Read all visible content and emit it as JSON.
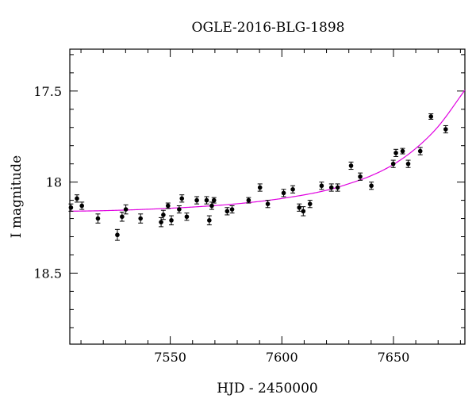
{
  "chart_data": {
    "type": "scatter",
    "title": "OGLE-2016-BLG-1898",
    "xlabel": "HJD - 2450000",
    "ylabel": "I magnitude",
    "xlim": [
      7505,
      7682
    ],
    "ylim": [
      18.89,
      17.27
    ],
    "y_axis_inverted": true,
    "grid": false,
    "x_ticks": [
      7550,
      7600,
      7650
    ],
    "x_tick_labels": [
      "7550",
      "7600",
      "7650"
    ],
    "y_ticks": [
      17.5,
      18,
      18.5
    ],
    "y_tick_labels": [
      "17.5",
      "18",
      "18.5"
    ],
    "colors": {
      "model_curve": "#e000e0",
      "points": "#000000",
      "axes": "#000000"
    },
    "series": [
      {
        "kind": "points_with_errorbars",
        "x": [
          7505.5,
          7508.2,
          7510.4,
          7517.6,
          7526.3,
          7528.4,
          7530.1,
          7536.7,
          7545.9,
          7546.9,
          7549.0,
          7550.5,
          7554.0,
          7555.2,
          7557.4,
          7561.9,
          7566.3,
          7567.5,
          7568.6,
          7569.6,
          7575.5,
          7577.7,
          7585.1,
          7590.2,
          7593.7,
          7600.8,
          7604.9,
          7607.8,
          7609.6,
          7612.6,
          7617.8,
          7622.2,
          7625.0,
          7631.0,
          7635.1,
          7640.1,
          7649.9,
          7651.1,
          7654.1,
          7656.6,
          7662.0,
          7666.8,
          7673.4
        ],
        "y": [
          18.14,
          18.09,
          18.13,
          18.2,
          18.29,
          18.19,
          18.15,
          18.2,
          18.22,
          18.18,
          18.13,
          18.21,
          18.15,
          18.09,
          18.19,
          18.1,
          18.1,
          18.21,
          18.13,
          18.1,
          18.16,
          18.15,
          18.1,
          18.03,
          18.12,
          18.06,
          18.04,
          18.14,
          18.16,
          18.12,
          18.02,
          18.03,
          18.03,
          17.91,
          17.97,
          18.02,
          17.9,
          17.84,
          17.83,
          17.9,
          17.83,
          17.64,
          17.71
        ],
        "err": [
          0.02,
          0.02,
          0.02,
          0.025,
          0.03,
          0.025,
          0.025,
          0.025,
          0.025,
          0.025,
          0.015,
          0.025,
          0.02,
          0.02,
          0.02,
          0.02,
          0.02,
          0.025,
          0.02,
          0.015,
          0.02,
          0.02,
          0.015,
          0.02,
          0.02,
          0.02,
          0.02,
          0.02,
          0.025,
          0.02,
          0.02,
          0.02,
          0.02,
          0.02,
          0.02,
          0.02,
          0.02,
          0.02,
          0.015,
          0.02,
          0.02,
          0.015,
          0.02
        ]
      },
      {
        "kind": "model_curve",
        "x": [
          7505,
          7520,
          7540,
          7560,
          7580,
          7600,
          7620,
          7630,
          7640,
          7650,
          7660,
          7670,
          7682
        ],
        "y": [
          18.16,
          18.157,
          18.149,
          18.137,
          18.119,
          18.09,
          18.045,
          18.009,
          17.965,
          17.903,
          17.815,
          17.695,
          17.495
        ]
      }
    ]
  }
}
